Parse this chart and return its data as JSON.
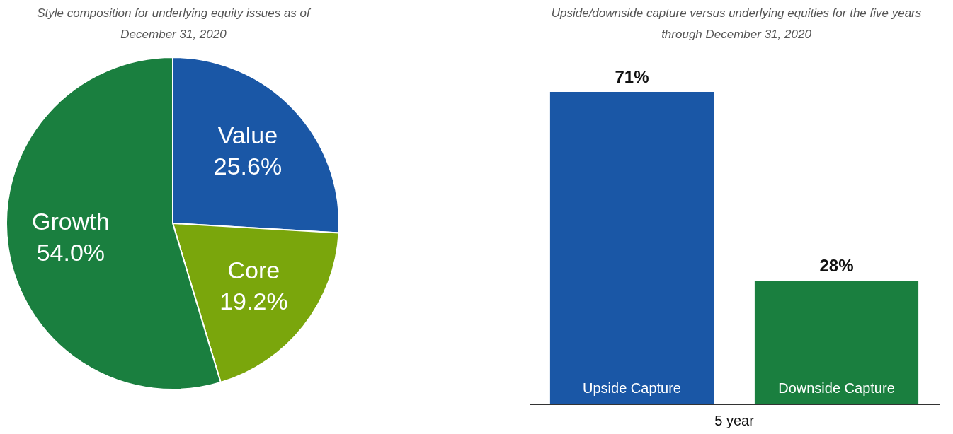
{
  "chart_data": [
    {
      "type": "pie",
      "title": "Style composition for underlying equity issues as of December 31, 2020",
      "categories": [
        "Value",
        "Core",
        "Growth"
      ],
      "values": [
        25.6,
        19.2,
        54.0
      ],
      "value_labels": [
        "25.6%",
        "19.2%",
        "54.0%"
      ],
      "colors": [
        "#1a57a6",
        "#7aa60c",
        "#1a7f3f"
      ],
      "legend": false
    },
    {
      "type": "bar",
      "title": "Upside/downside capture versus underlying equities for the five years through December 31, 2020",
      "xlabel": "5 year",
      "categories": [
        "Upside Capture",
        "Downside Capture"
      ],
      "values": [
        71,
        28
      ],
      "value_labels": [
        "71%",
        "28%"
      ],
      "colors": [
        "#1a57a6",
        "#1a7f3f"
      ],
      "legend": false,
      "grid": false
    }
  ]
}
